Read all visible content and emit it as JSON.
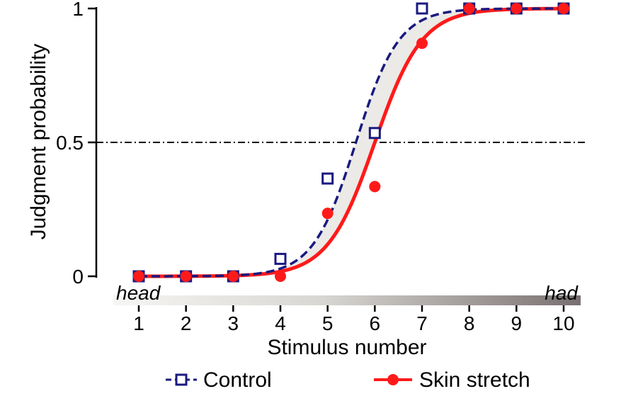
{
  "chart_data": {
    "type": "line",
    "xlabel": "Stimulus number",
    "ylabel": "Judgment probability",
    "x": [
      1,
      2,
      3,
      4,
      5,
      6,
      7,
      8,
      9,
      10
    ],
    "xlim": [
      1,
      10
    ],
    "ylim": [
      0,
      1
    ],
    "yticks": [
      0,
      0.5,
      1
    ],
    "yticklabels": [
      "0",
      "0.5",
      "1"
    ],
    "xticklabels": [
      "1",
      "2",
      "3",
      "4",
      "5",
      "6",
      "7",
      "8",
      "9",
      "10"
    ],
    "reference_line": {
      "y": 0.5,
      "style": "dash-dot"
    },
    "continuum": {
      "start_label": "head",
      "end_label": "had"
    },
    "series": [
      {
        "name": "Control",
        "color": "#1a1a80",
        "marker": "open-square",
        "line_style": "dashed",
        "values": [
          0,
          0,
          0,
          0.065,
          0.365,
          0.535,
          1,
          1,
          1,
          1
        ],
        "fit": {
          "type": "logistic",
          "midpoint": 5.6,
          "slope": 2.2
        }
      },
      {
        "name": "Skin stretch",
        "color": "#ff1a1a",
        "marker": "filled-circle",
        "line_style": "solid",
        "values": [
          0,
          0,
          0,
          0,
          0.235,
          0.335,
          0.87,
          1,
          1,
          1
        ],
        "fit": {
          "type": "logistic",
          "midpoint": 6.0,
          "slope": 2.0
        }
      }
    ],
    "legend": {
      "position": "bottom"
    }
  }
}
